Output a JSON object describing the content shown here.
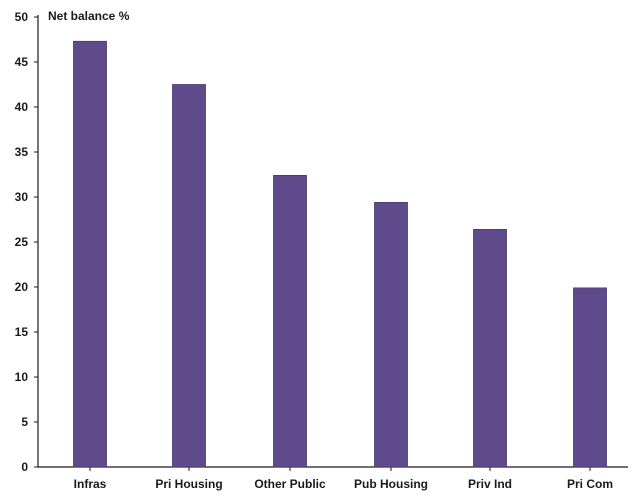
{
  "chart_data": {
    "type": "bar",
    "title": "",
    "xlabel": "",
    "ylabel": "Net balance %",
    "categories": [
      "Infras",
      "Pri Housing",
      "Other Public",
      "Pub Housing",
      "Priv Ind",
      "Pri Com"
    ],
    "values": [
      47.3,
      42.5,
      32.4,
      29.4,
      26.4,
      19.9
    ],
    "ylim": [
      0,
      50
    ],
    "yticks": [
      0,
      5,
      10,
      15,
      20,
      25,
      30,
      35,
      40,
      45,
      50
    ],
    "grid": false,
    "legend": "none",
    "colors": {
      "bar": "#5f4b8b",
      "bar_edge": "#4a3a72",
      "axis": "#1a1a1a"
    }
  }
}
